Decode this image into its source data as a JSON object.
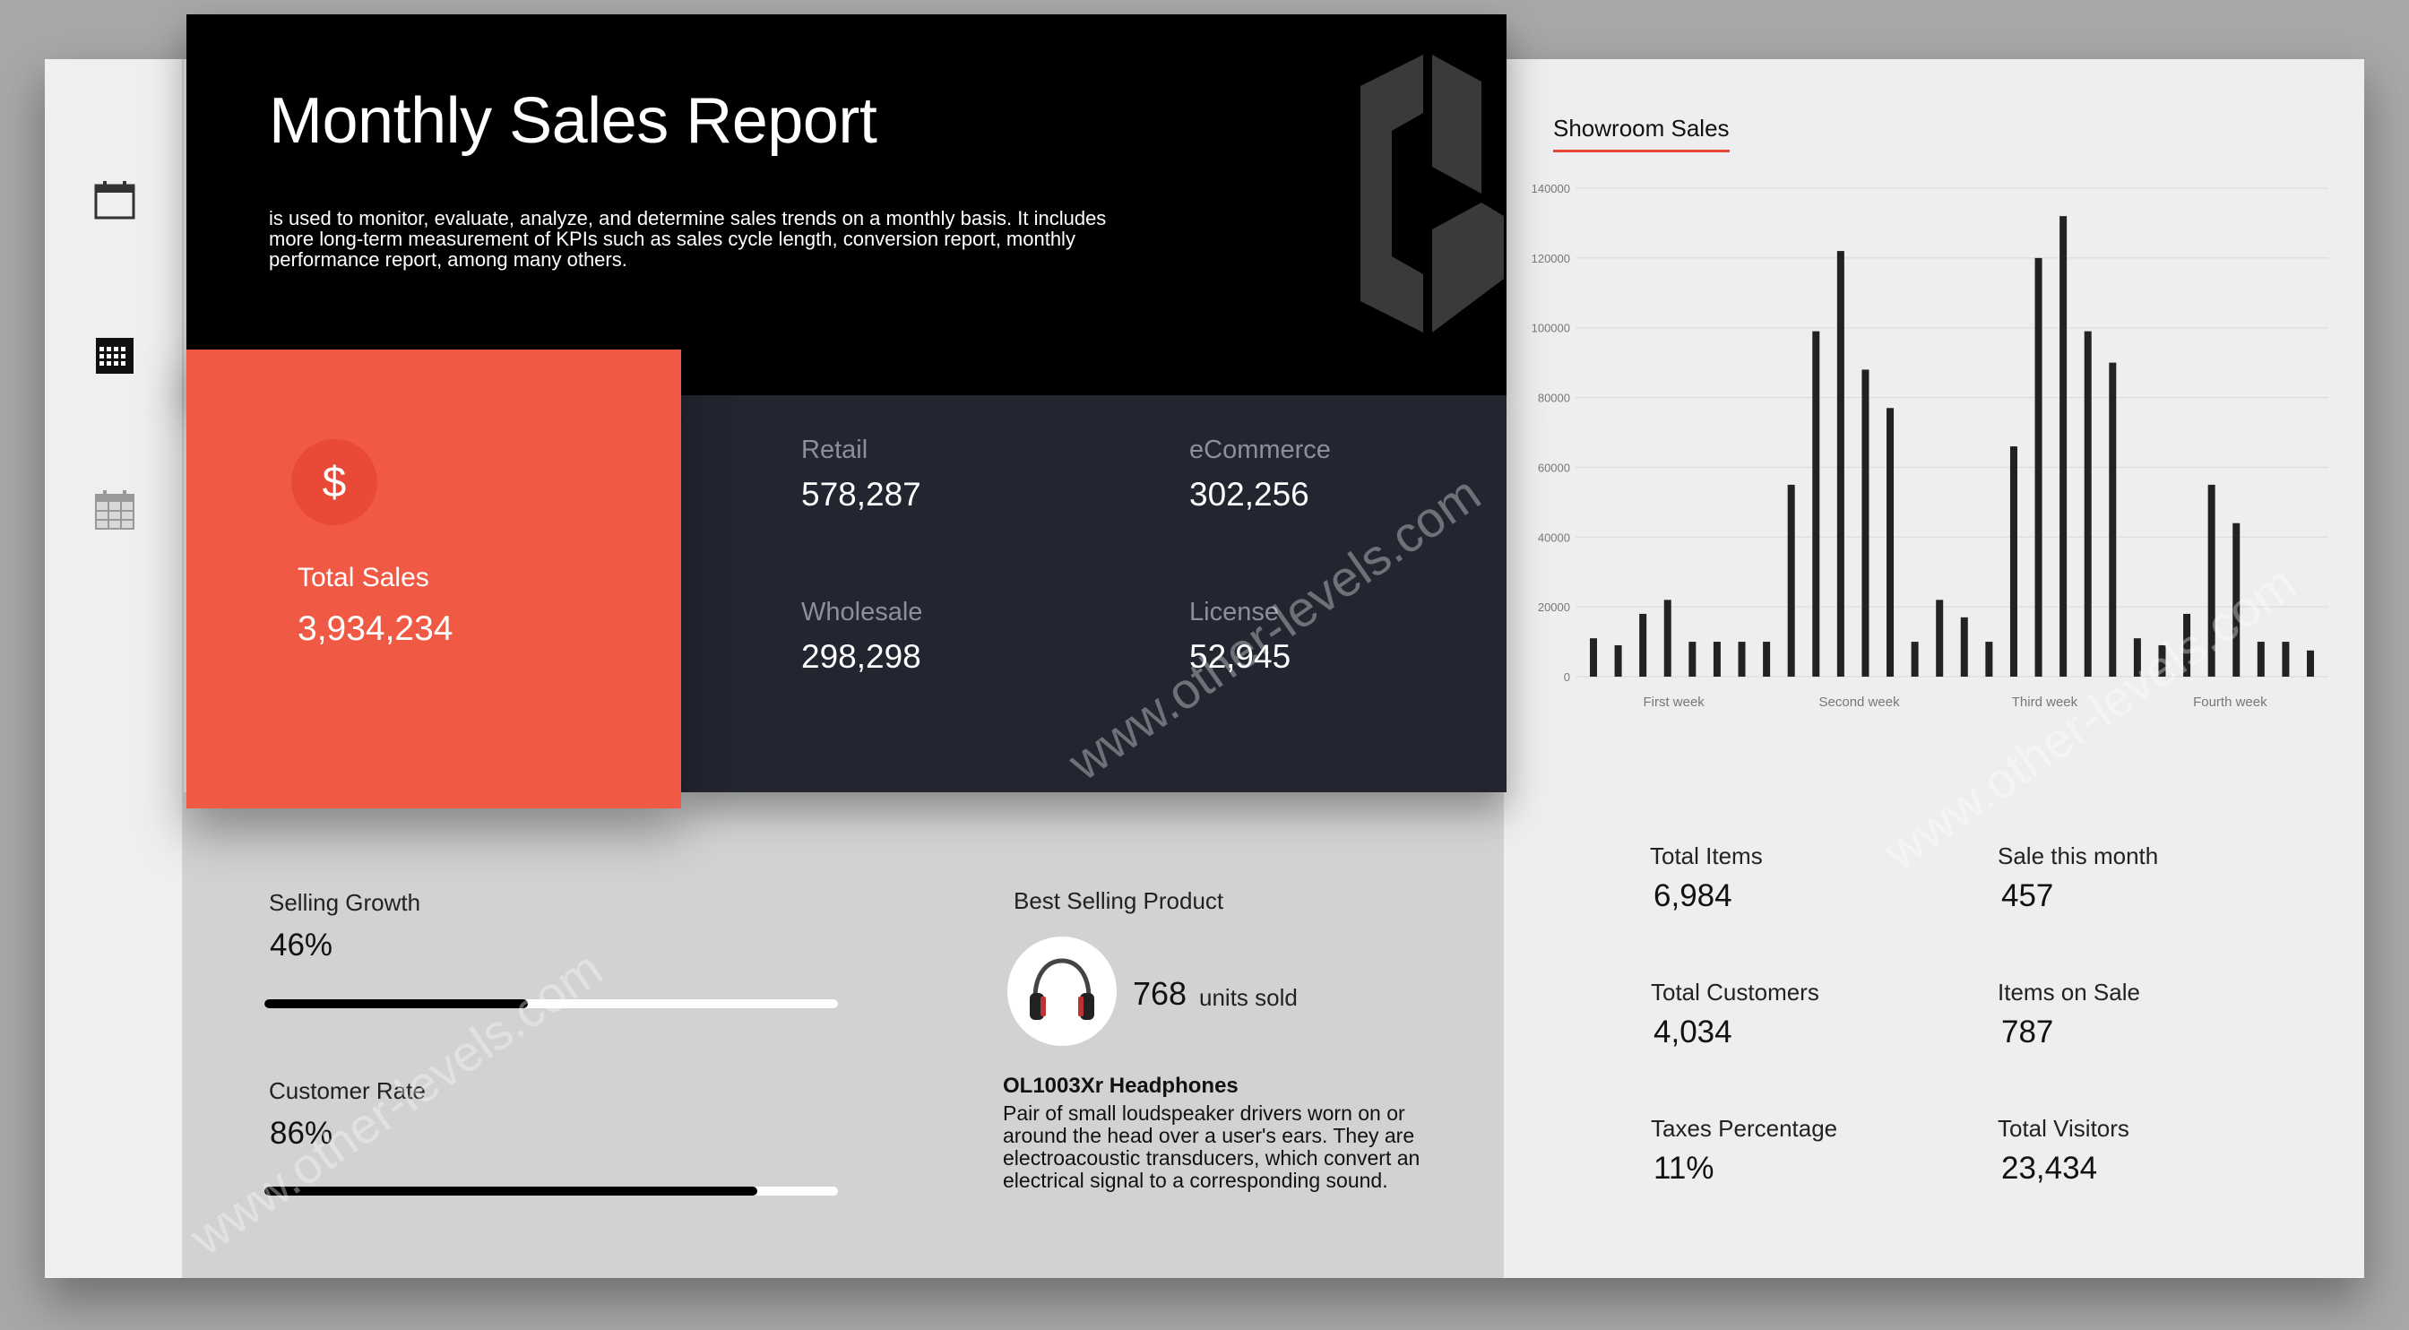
{
  "header": {
    "title": "Monthly Sales Report",
    "description": "is used to monitor, evaluate, analyze, and determine sales trends on a monthly basis. It includes more long-term measurement of KPIs such as sales cycle length, conversion report, monthly performance report, among many others."
  },
  "sidebar": {
    "icons": [
      {
        "name": "calendar-icon"
      },
      {
        "name": "calendar-grid-icon"
      },
      {
        "name": "calendar-table-icon"
      }
    ]
  },
  "total_sales": {
    "icon": "$",
    "label": "Total Sales",
    "value": "3,934,234"
  },
  "metrics": [
    {
      "label": "Retail",
      "value": "578,287"
    },
    {
      "label": "eCommerce",
      "value": "302,256"
    },
    {
      "label": "Wholesale",
      "value": "298,298"
    },
    {
      "label": "License",
      "value": "52,945"
    }
  ],
  "kpis": {
    "selling_growth": {
      "label": "Selling Growth",
      "value": "46%",
      "progress": 0.46
    },
    "customer_rate": {
      "label": "Customer Rate",
      "value": "86%",
      "progress": 0.86
    }
  },
  "product": {
    "section_title": "Best Selling Product",
    "units": "768",
    "units_label": "units sold",
    "name": "OL1003Xr Headphones",
    "description": "Pair of small loudspeaker drivers worn on or around the head over a user's ears. They are electroacoustic transducers, which convert an electrical signal to a corresponding sound."
  },
  "chart_title": "Showroom Sales",
  "chart_data": {
    "type": "bar",
    "title": "Showroom Sales",
    "ylim": [
      0,
      140000
    ],
    "yticks": [
      "0",
      "20000",
      "40000",
      "60000",
      "80000",
      "100000",
      "120000",
      "140000"
    ],
    "xlabels": [
      "First week",
      "Second week",
      "Third week",
      "Fourth week"
    ],
    "values": [
      11000,
      9000,
      18000,
      22000,
      10000,
      10000,
      10000,
      10000,
      55000,
      99000,
      122000,
      88000,
      77000,
      10000,
      22000,
      17000,
      10000,
      66000,
      120000,
      132000,
      99000,
      90000,
      11000,
      9000,
      18000,
      55000,
      44000,
      10000,
      10000,
      7500
    ],
    "color": "#222222"
  },
  "stats": [
    {
      "label": "Total Items",
      "value": "6,984"
    },
    {
      "label": "Sale this month",
      "value": "457"
    },
    {
      "label": "Total Customers",
      "value": "4,034"
    },
    {
      "label": "Items on Sale",
      "value": "787"
    },
    {
      "label": "Taxes Percentage",
      "value": "11%"
    },
    {
      "label": "Total Visitors",
      "value": "23,434"
    }
  ],
  "watermark": "www.other-levels.com",
  "colors": {
    "accent": "#f05944",
    "header_bg": "#000000",
    "metrics_bg": "#232631"
  }
}
